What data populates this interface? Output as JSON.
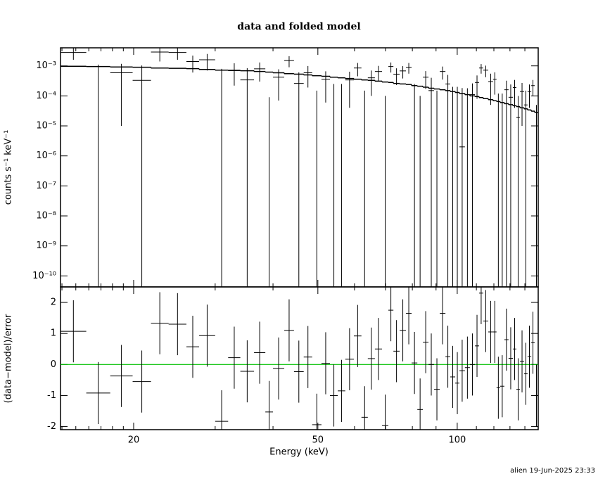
{
  "chart_data": [
    {
      "type": "errorbar",
      "title": "data and folded model",
      "ylabel": "counts s⁻¹ keV⁻¹",
      "ylog": true,
      "ylim": [
        4.3e-11,
        0.004
      ],
      "yticks": [
        {
          "value": 1e-10,
          "label": "10⁻¹⁰"
        },
        {
          "value": 1e-09,
          "label": "10⁻⁹"
        },
        {
          "value": 1e-08,
          "label": "10⁻⁸"
        },
        {
          "value": 1e-07,
          "label": "10⁻⁷"
        },
        {
          "value": 1e-06,
          "label": "10⁻⁶"
        },
        {
          "value": 1e-05,
          "label": "10⁻⁵"
        },
        {
          "value": 0.0001,
          "label": "10⁻⁴"
        },
        {
          "value": 0.001,
          "label": "10⁻³"
        }
      ],
      "color": "#000000",
      "bins": [
        13.9,
        15.8,
        17.8,
        19.9,
        21.8,
        23.8,
        26.0,
        27.7,
        30.0,
        32.0,
        34.0,
        36.4,
        38.5,
        40.0,
        42.3,
        44.4,
        46.6,
        48.6,
        50.9,
        53.1,
        55.2,
        57.3,
        59.8,
        62.1,
        64.1,
        66.4,
        68.8,
        71.0,
        72.8,
        75.1,
        77.5,
        79.7,
        82.0,
        84.3,
        86.7,
        89.1,
        91.7,
        94.3,
        96.6,
        99.0,
        101.1,
        103.9,
        106.5,
        109.2,
        111.5,
        113.8,
        116.7,
        119.5,
        121.6,
        123.8,
        126.4,
        129.1,
        131.9,
        134.2,
        136.6,
        139.5,
        141.9,
        144.5,
        147.0,
        149.6
      ],
      "data": {
        "values": [
          0.0028,
          4.3e-11,
          0.00059,
          0.00033,
          0.0029,
          0.0028,
          0.0014,
          0.0016,
          4.3e-11,
          0.00072,
          0.00034,
          0.0008,
          4.3e-11,
          0.00042,
          0.0015,
          0.00026,
          0.00059,
          4.3e-11,
          0.00036,
          4.3e-11,
          4.3e-11,
          0.00034,
          0.00085,
          4.3e-11,
          0.0004,
          0.00065,
          4.3e-11,
          0.00095,
          0.00053,
          0.00068,
          0.0009,
          4.3e-11,
          4.3e-11,
          0.00042,
          0.00015,
          4.3e-11,
          0.00065,
          0.00025,
          4.3e-11,
          4.3e-11,
          2e-06,
          4.3e-11,
          0.00011,
          0.00028,
          0.00085,
          0.00072,
          0.0003,
          0.00036,
          4.3e-11,
          4.3e-11,
          0.00016,
          9e-05,
          0.00019,
          1.9e-05,
          0.00014,
          5e-05,
          0.00014,
          0.00022,
          4.3e-11
        ],
        "errors": [
          0.0012,
          0.0011,
          0.00058,
          0.0007,
          0.0015,
          0.0012,
          0.0008,
          0.0009,
          0.0008,
          0.0005,
          0.0005,
          0.0005,
          9e-05,
          0.00035,
          0.0006,
          0.00035,
          0.0004,
          0.00015,
          0.0003,
          0.00025,
          0.00025,
          0.0003,
          0.0004,
          0.00015,
          0.0003,
          0.00035,
          0.0001,
          0.00035,
          0.0003,
          0.0003,
          0.00035,
          0.00025,
          0.0001,
          0.00025,
          0.00025,
          0.00015,
          0.0003,
          0.00025,
          0.0002,
          0.0002,
          0.00018,
          0.00018,
          0.00015,
          0.0002,
          0.0003,
          0.0003,
          0.00025,
          0.00025,
          0.00012,
          0.00012,
          0.00016,
          0.00015,
          0.00015,
          8e-05,
          0.00013,
          0.0001,
          0.0001,
          0.00012,
          5e-05
        ]
      },
      "model": {
        "values": [
          0.00097,
          0.00095,
          0.00092,
          0.0009,
          0.00085,
          0.00083,
          0.00081,
          0.00076,
          0.00072,
          0.0007,
          0.00069,
          0.00065,
          0.00062,
          0.00059,
          0.00055,
          0.00053,
          0.0005,
          0.00047,
          0.00045,
          0.00042,
          0.0004,
          0.00038,
          0.00036,
          0.00034,
          0.00033,
          0.00031,
          0.00029,
          0.00028,
          0.00026,
          0.00025,
          0.00024,
          0.00022,
          0.00021,
          0.000195,
          0.00018,
          0.00017,
          0.00016,
          0.00015,
          0.00014,
          0.00013,
          0.00012,
          0.00011,
          0.0001,
          9.5e-05,
          8.8e-05,
          8.1e-05,
          7.5e-05,
          6.9e-05,
          6.5e-05,
          6e-05,
          5.5e-05,
          5.1e-05,
          4.7e-05,
          4.4e-05,
          4e-05,
          3.7e-05,
          3.4e-05,
          3.1e-05,
          2.8e-05
        ]
      }
    },
    {
      "type": "residual",
      "xlabel": "Energy (keV)",
      "ylabel": "(data−model)/error",
      "xlog": true,
      "xlim": [
        13.9,
        149.6
      ],
      "xticks": [
        20,
        50,
        100
      ],
      "xminorticks": [
        14,
        15,
        16,
        17,
        18,
        19,
        30,
        40,
        60,
        70,
        80,
        90,
        110,
        120,
        130,
        140
      ],
      "ylim": [
        -2.1,
        2.5
      ],
      "yticks": [
        -2,
        -1,
        0,
        1,
        2
      ],
      "hline": 0,
      "hline_color": "#00c000",
      "color": "#000000",
      "values": [
        1.07,
        -0.92,
        -0.37,
        -0.55,
        1.33,
        1.3,
        0.57,
        0.93,
        -1.83,
        0.22,
        -0.22,
        0.38,
        -1.53,
        -0.13,
        1.1,
        -0.23,
        0.24,
        -1.94,
        0.04,
        -1.0,
        -0.85,
        0.17,
        0.92,
        -1.7,
        0.19,
        0.5,
        -1.97,
        1.75,
        0.43,
        1.1,
        1.65,
        0.05,
        -1.45,
        0.72,
        0,
        -0.8,
        1.65,
        0.25,
        -0.4,
        -0.6,
        -0.2,
        -0.1,
        0,
        0.6,
        2.3,
        1.4,
        1.05,
        1.05,
        -0.75,
        -0.7,
        0.8,
        0.2,
        0.5,
        -0.8,
        0.1,
        -0.3,
        0.25,
        0.7,
        -1.0
      ],
      "errors": [
        1,
        1,
        1,
        1,
        1,
        1,
        1,
        1,
        1,
        1,
        1,
        1,
        1,
        1,
        1,
        1,
        1,
        1,
        1,
        1,
        1,
        1,
        1,
        1,
        1,
        1,
        1,
        1,
        1,
        1,
        1,
        1,
        1,
        1,
        1,
        1,
        1,
        1,
        1,
        1,
        1,
        1,
        1,
        1,
        1,
        1,
        1,
        1,
        1,
        1,
        1,
        1,
        1,
        1,
        1,
        1,
        1,
        1,
        1
      ]
    }
  ],
  "footer": "alien 19-Jun-2025 23:33"
}
